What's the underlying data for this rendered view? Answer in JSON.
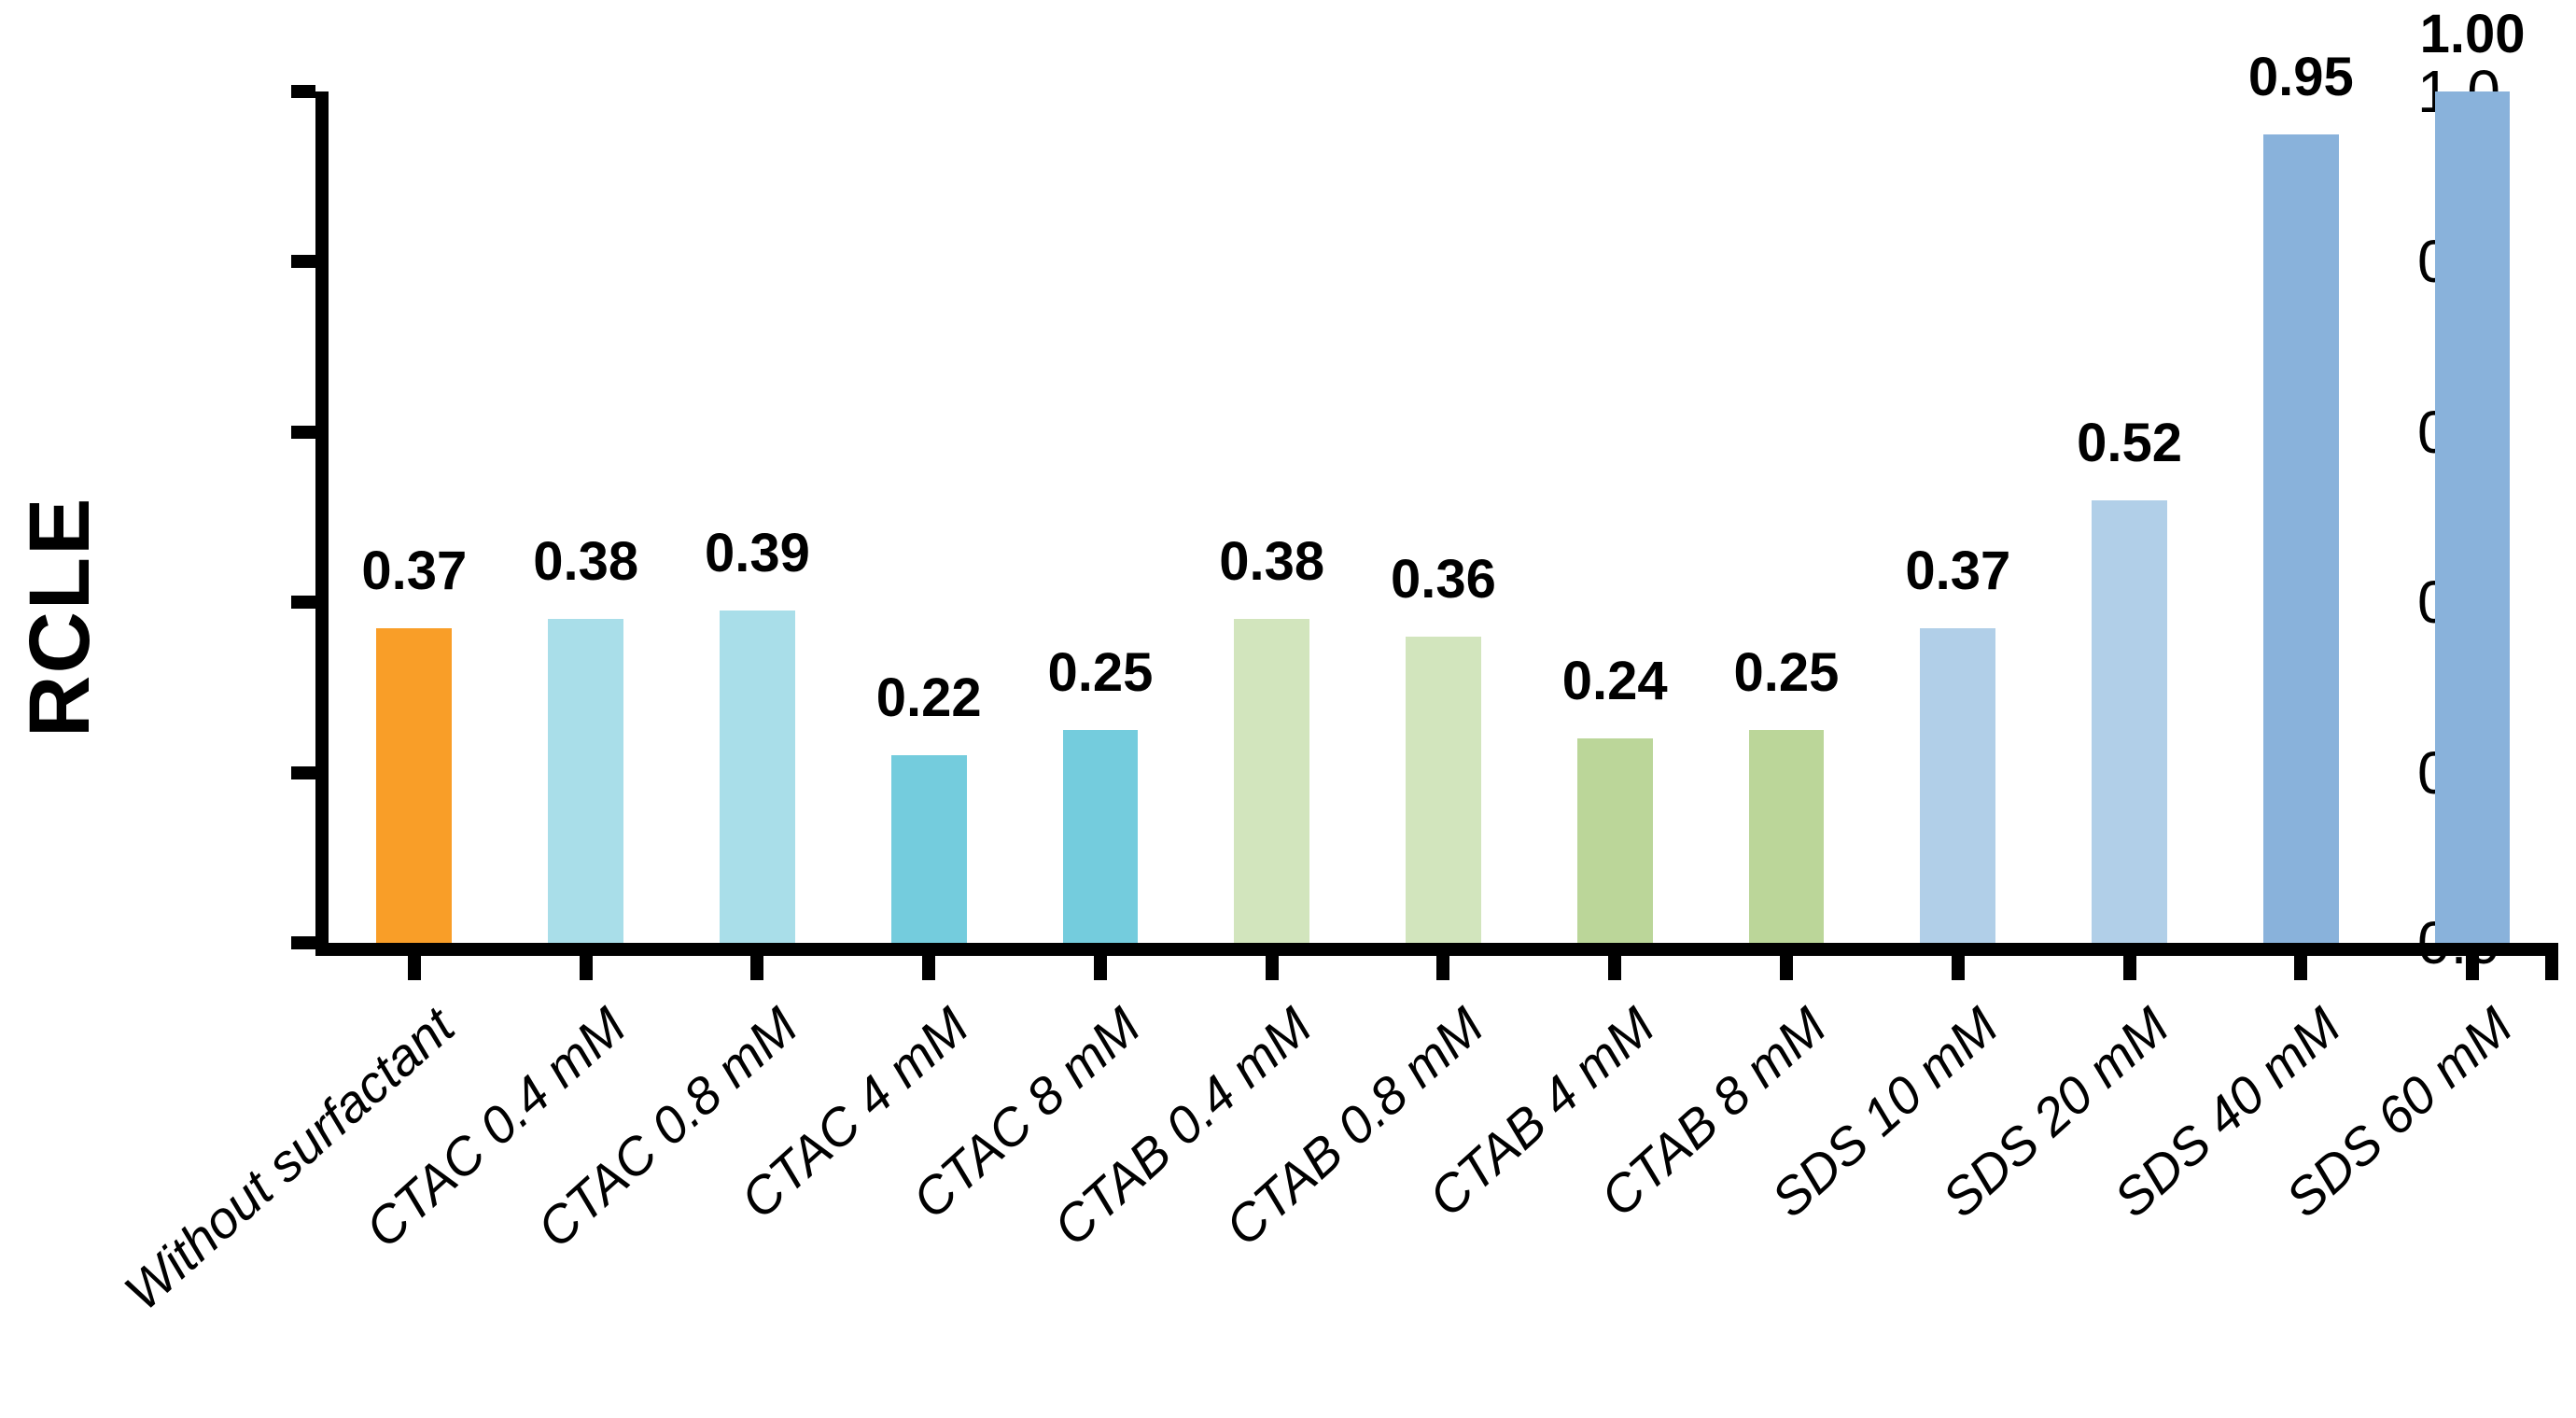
{
  "chart_data": {
    "type": "bar",
    "title": "",
    "xlabel": "",
    "ylabel": "RCLE",
    "ylim": [
      0.0,
      1.0
    ],
    "grid": false,
    "legend": null,
    "ytick_labels": [
      "0.0",
      "0.2",
      "0.4",
      "0.6",
      "0.8",
      "1.0"
    ],
    "ytick_values": [
      0.0,
      0.2,
      0.4,
      0.6,
      0.8,
      1.0
    ],
    "categories": [
      "Without surfactant",
      "CTAC 0.4 mM",
      "CTAC 0.8 mM",
      "CTAC 4 mM",
      "CTAC 8 mM",
      "CTAB 0.4 mM",
      "CTAB 0.8 mM",
      "CTAB 4 mM",
      "CTAB 8 mM",
      "SDS 10 mM",
      "SDS 20 mM",
      "SDS 40 mM",
      "SDS 60 mM"
    ],
    "values": [
      0.37,
      0.38,
      0.39,
      0.22,
      0.25,
      0.38,
      0.36,
      0.24,
      0.25,
      0.37,
      0.52,
      0.95,
      1.0
    ],
    "value_labels": [
      "0.37",
      "0.38",
      "0.39",
      "0.22",
      "0.25",
      "0.38",
      "0.36",
      "0.24",
      "0.25",
      "0.37",
      "0.52",
      "0.95",
      "1.00"
    ],
    "bar_colors": [
      "#F99E28",
      "#A9DEE9",
      "#A9DEE9",
      "#74CCDD",
      "#74CCDD",
      "#D2E5BD",
      "#D2E5BD",
      "#BBD699",
      "#BBD699",
      "#B1CFE8",
      "#B1CFE8",
      "#89B2DB",
      "#89B2DB"
    ],
    "axis_color": "#000000",
    "text_color": "#000000"
  }
}
